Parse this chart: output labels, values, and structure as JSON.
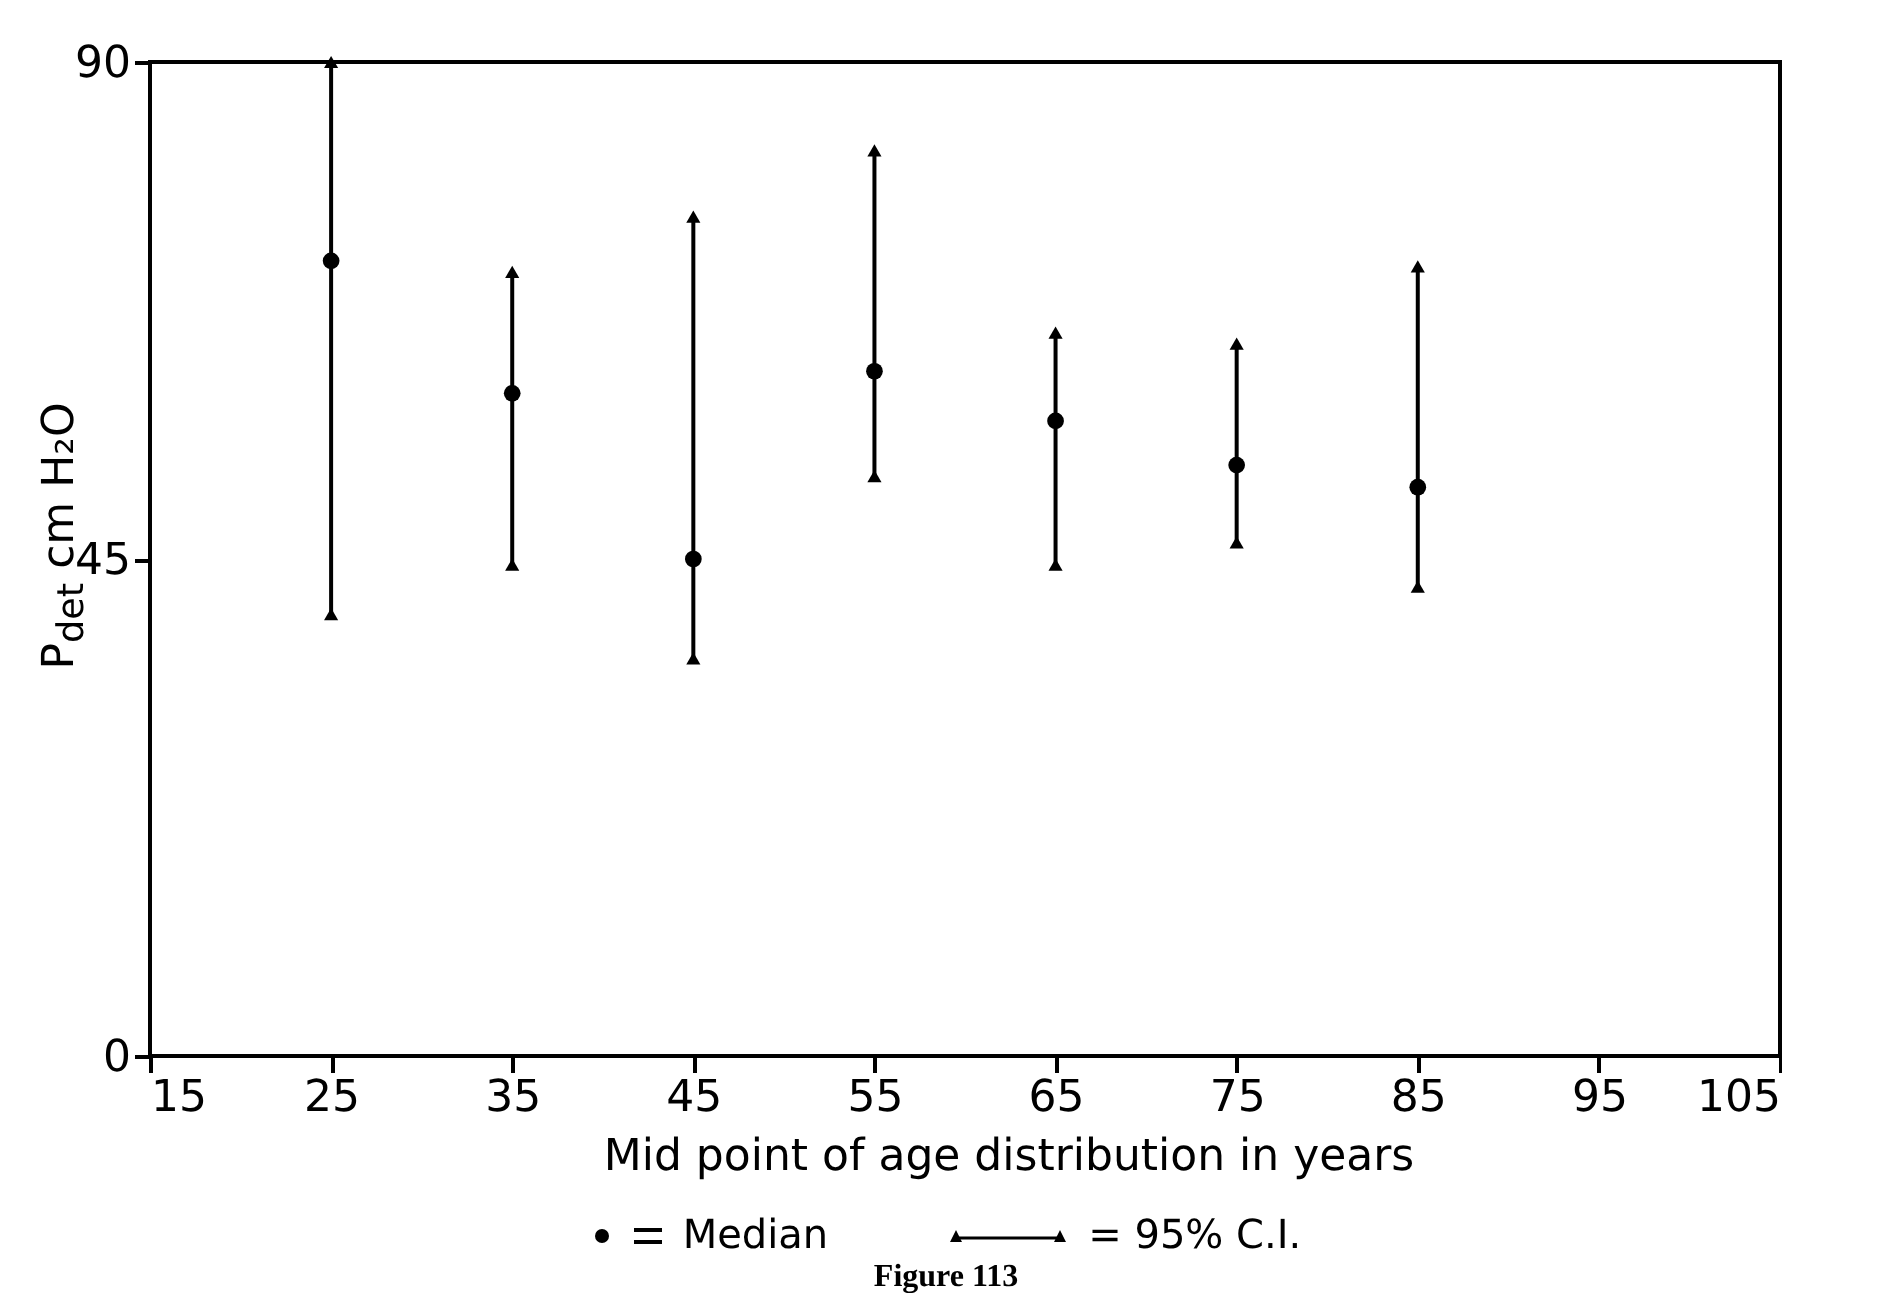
{
  "chart_data": {
    "type": "scatter",
    "xlabel": "Mid point of age distribution in years",
    "ylabel": "P$_{det}$ cm H₂O",
    "x": [
      25,
      35,
      45,
      55,
      65,
      75,
      85
    ],
    "series": [
      {
        "name": "Median",
        "color": "#000000",
        "values": [
          72,
          60,
          45,
          62,
          57.5,
          53.5,
          51.5
        ],
        "errors": [
          [
            40,
            90
          ],
          [
            44.5,
            71
          ],
          [
            36,
            76
          ],
          [
            52.5,
            82
          ],
          [
            44.5,
            65.5
          ],
          [
            46.5,
            64.5
          ],
          [
            42.5,
            71.5
          ]
        ]
      }
    ],
    "xlim": [
      15,
      105
    ],
    "xticks": [
      15,
      25,
      35,
      45,
      55,
      65,
      75,
      85,
      95,
      105
    ],
    "ylim": [
      0,
      90
    ],
    "yticks": [
      0,
      45,
      90
    ],
    "marker": "circle",
    "legend": "bottom",
    "grid": false,
    "annotations": [
      "= 95% C.I.",
      "Figure 113"
    ]
  }
}
